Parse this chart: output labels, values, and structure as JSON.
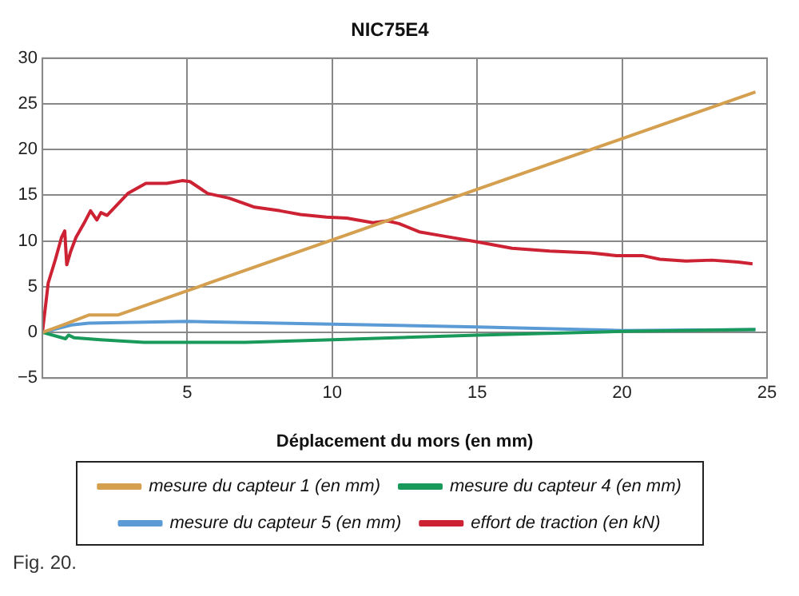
{
  "chart_data": {
    "type": "line",
    "title": "NIC75E4",
    "xlabel": "Déplacement du mors (en mm)",
    "annotations": [
      "Fig. 20."
    ],
    "xlim": [
      0,
      25
    ],
    "xticks": [
      {
        "value": 0,
        "label": null
      },
      5,
      10,
      15,
      20,
      25
    ],
    "ylim": [
      -5,
      30
    ],
    "yticks": [
      -5,
      0,
      5,
      10,
      15,
      20,
      25,
      30
    ],
    "grid": true,
    "legend": "bottom",
    "marker": "none",
    "line_style": "solid",
    "series": [
      {
        "name": "mesure du capteur 1 (en mm)",
        "color": "#d4a050",
        "x": [
          0,
          0.7,
          1.6,
          2.6,
          24.6
        ],
        "values": [
          0,
          0.8,
          1.9,
          1.9,
          26.3
        ]
      },
      {
        "name": "mesure du capteur 4 (en mm)",
        "color": "#1a9a5a",
        "x": [
          0,
          0.8,
          0.9,
          1.1,
          2,
          3.5,
          7,
          10,
          15,
          20,
          24.6
        ],
        "values": [
          0,
          -0.7,
          -0.3,
          -0.6,
          -0.8,
          -1.1,
          -1.1,
          -0.8,
          -0.3,
          0.1,
          0.3
        ]
      },
      {
        "name": "mesure du capteur 5 (en mm)",
        "color": "#5b9bd5",
        "x": [
          0,
          1,
          1.6,
          5,
          10,
          15,
          20,
          24.6
        ],
        "values": [
          0,
          0.8,
          1,
          1.2,
          0.9,
          0.6,
          0.2,
          0.3
        ]
      },
      {
        "name": "effort de traction (en kN)",
        "color": "#cc2233",
        "x": [
          0,
          0.2,
          0.45,
          0.66,
          0.77,
          0.84,
          0.98,
          1.16,
          1.43,
          1.66,
          1.88,
          2.02,
          2.23,
          2.59,
          2.95,
          3.57,
          4.29,
          4.82,
          5.09,
          5.7,
          6.43,
          7.32,
          8.2,
          8.9,
          9.8,
          10.5,
          11.4,
          11.9,
          12.3,
          13,
          13.9,
          15,
          16.2,
          17.5,
          18.9,
          19.8,
          20.7,
          21.3,
          22.2,
          23.1,
          24,
          24.5
        ],
        "values": [
          0,
          5.4,
          8,
          10.4,
          11.1,
          7.4,
          8.9,
          10.4,
          11.9,
          13.3,
          12.3,
          13.1,
          12.8,
          14,
          15.2,
          16.3,
          16.3,
          16.6,
          16.5,
          15.2,
          14.7,
          13.7,
          13.3,
          12.9,
          12.6,
          12.5,
          12,
          12.2,
          11.9,
          11,
          10.5,
          9.9,
          9.2,
          8.9,
          8.7,
          8.4,
          8.4,
          8,
          7.8,
          7.9,
          7.7,
          7.5
        ]
      }
    ]
  }
}
